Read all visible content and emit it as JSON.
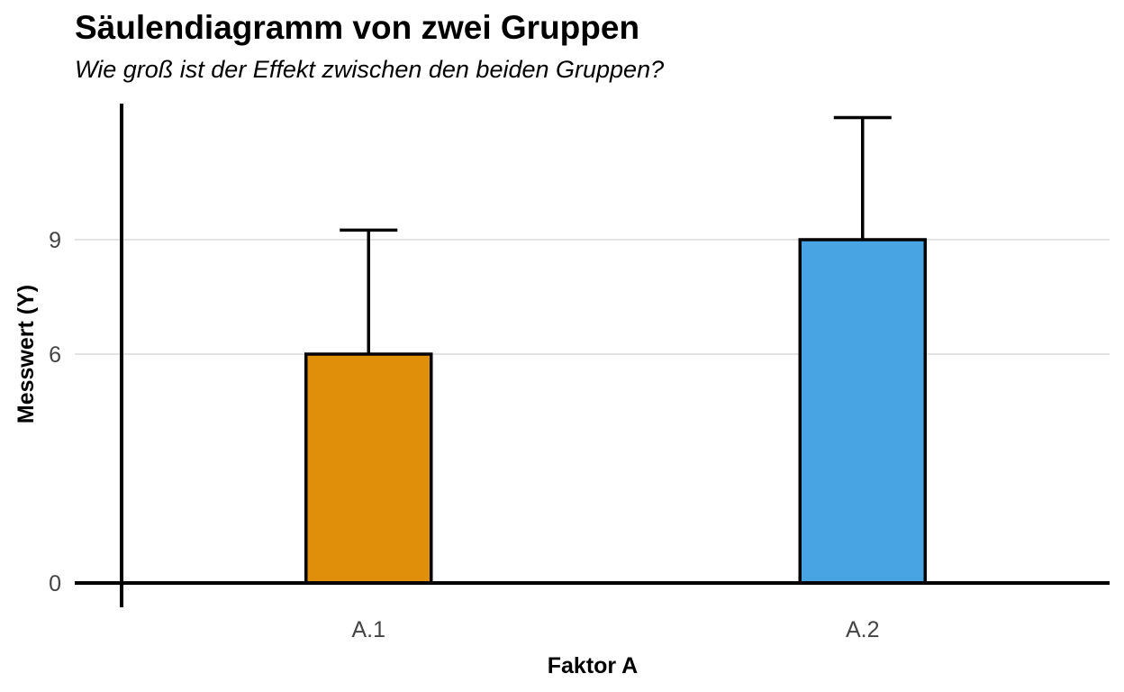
{
  "chart_data": {
    "type": "bar",
    "title": "Säulendiagramm von zwei Gruppen",
    "subtitle": "Wie groß ist der Effekt zwischen den beiden Gruppen?",
    "xlabel": "Faktor A",
    "ylabel": "Messwert (Y)",
    "categories": [
      "A.1",
      "A.2"
    ],
    "values": [
      6,
      9
    ],
    "error_upper": [
      9.25,
      12.2
    ],
    "colors": [
      "#E08F0B",
      "#48A4E3"
    ],
    "y_ticks": [
      0,
      6,
      9
    ],
    "ylim": [
      -0.6,
      12.5
    ],
    "grid": "horizontal major lines at 6 and 9",
    "legend": "none"
  }
}
